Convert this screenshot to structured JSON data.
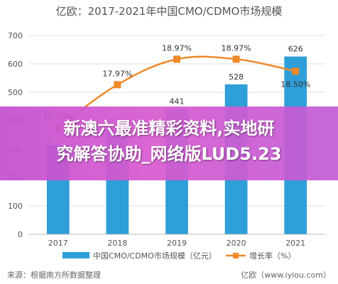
{
  "chart_data": {
    "type": "bar",
    "title": "亿欧：2017-2021年中国CMO/CDMO市场规模",
    "categories": [
      "2017",
      "2018",
      "2019",
      "2020",
      "2021"
    ],
    "series": [
      {
        "name": "中国CMO/CDMO市场规模（亿元）",
        "type": "bar",
        "axis": "left",
        "values": [
          313,
          370,
          441,
          528,
          626
        ],
        "labels": [
          "",
          "370",
          "441",
          "528",
          "626"
        ]
      },
      {
        "name": "增长率（%）",
        "type": "line",
        "axis": "right",
        "values": [
          16.28,
          17.97,
          18.97,
          18.97,
          18.5
        ],
        "labels": [
          "16.28%",
          "17.97%",
          "18.97%",
          "18.97%",
          "18.50%"
        ]
      }
    ],
    "ylim": [
      0,
      700
    ],
    "yticks": [
      "0",
      "100",
      "200",
      "300",
      "400",
      "500",
      "600",
      "700"
    ],
    "y2lim": [
      12.1,
      19.9
    ],
    "grid": true,
    "legend_position": "bottom",
    "colors": {
      "bar": "#2e9fd8",
      "line": "#ee8a2a",
      "grid": "#e2e2e2",
      "text": "#555555"
    }
  },
  "footer": {
    "source": "来源：根据南方所数据整理",
    "brand": "亿欧（www.iyiou.com）"
  },
  "overlay": {
    "line1": "新澳六最准精彩资料,实地研",
    "line2": "究解答协助_网络版LUD5.23"
  }
}
